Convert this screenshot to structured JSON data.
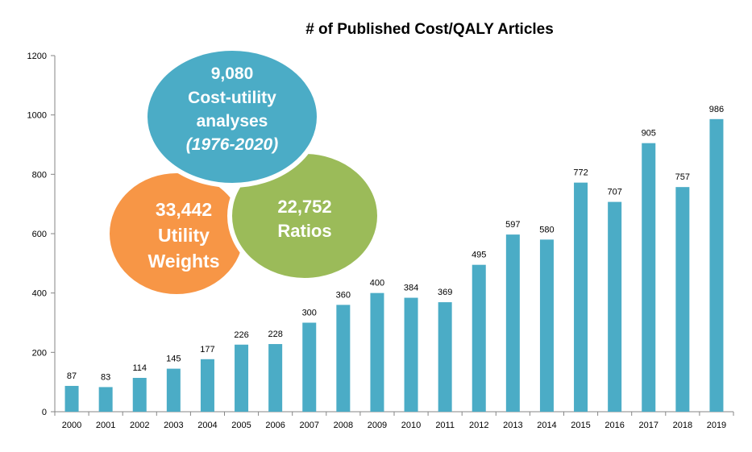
{
  "chart_data": {
    "type": "bar",
    "title": "# of Published Cost/QALY Articles",
    "xlabel": "",
    "ylabel": "",
    "ylim": [
      0,
      1200
    ],
    "yticks": [
      0,
      200,
      400,
      600,
      800,
      1000,
      1200
    ],
    "grid": false,
    "legend": "none",
    "bar_color": "#4BACC6",
    "categories": [
      "2000",
      "2001",
      "2002",
      "2003",
      "2004",
      "2005",
      "2006",
      "2007",
      "2008",
      "2009",
      "2010",
      "2011",
      "2012",
      "2013",
      "2014",
      "2015",
      "2016",
      "2017",
      "2018",
      "2019"
    ],
    "values": [
      87,
      83,
      114,
      145,
      177,
      226,
      228,
      300,
      360,
      400,
      384,
      369,
      495,
      597,
      580,
      772,
      707,
      905,
      757,
      986
    ],
    "annotations": [
      {
        "id": "cua",
        "lines": [
          "9,080",
          "Cost-utility",
          "analyses"
        ],
        "italic_line": "(1976-2020)",
        "color": "#4BACC6"
      },
      {
        "id": "uw",
        "lines": [
          "33,442",
          "Utility",
          "Weights"
        ],
        "color": "#F79646"
      },
      {
        "id": "ratios",
        "lines": [
          "22,752",
          "Ratios"
        ],
        "color": "#9BBB59"
      }
    ]
  }
}
